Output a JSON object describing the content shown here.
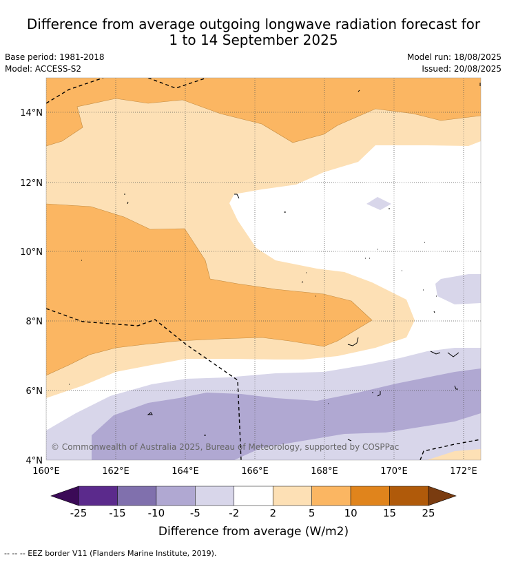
{
  "title_line1": "Difference from average outgoing longwave radiation forecast for",
  "title_line2": "1 to 14 September 2025",
  "base_period": "Base period: 1981-2018",
  "model": "Model: ACCESS-S2",
  "model_run": "Model run: 18/08/2025",
  "issued": "Issued: 20/08/2025",
  "copyright": "© Commonwealth of Australia 2025, Bureau of Meteorology, supported by COSPPac",
  "lat_labels": [
    "14°N",
    "12°N",
    "10°N",
    "8°N",
    "6°N",
    "4°N"
  ],
  "lon_labels": [
    "160°E",
    "162°E",
    "164°E",
    "166°E",
    "168°E",
    "170°E",
    "172°E"
  ],
  "colorbar": {
    "label": "Difference from average (W/m2)",
    "ticks": [
      "-25",
      "-15",
      "-10",
      "-5",
      "-2",
      "2",
      "5",
      "10",
      "15",
      "25"
    ],
    "colors": {
      "below_min": "#3b0a57",
      "bins": [
        "#5b2a8c",
        "#8070ad",
        "#b0a8d2",
        "#d8d6ea",
        "#ffffff",
        "#fde0b5",
        "#fbb662",
        "#e0841c",
        "#b05a0a"
      ],
      "above_max": "#7a3c10"
    }
  },
  "map_colors": {
    "orange_5_10": "#fbb662",
    "light_orange_2_5": "#fde0b5",
    "neutral": "#ffffff",
    "light_purple_m2_m5": "#d8d6ea",
    "purple_m5_m10": "#b0a8d2"
  },
  "eez_note": "-- -- -- EEZ border V11 (Flanders Marine Institute, 2019)."
}
